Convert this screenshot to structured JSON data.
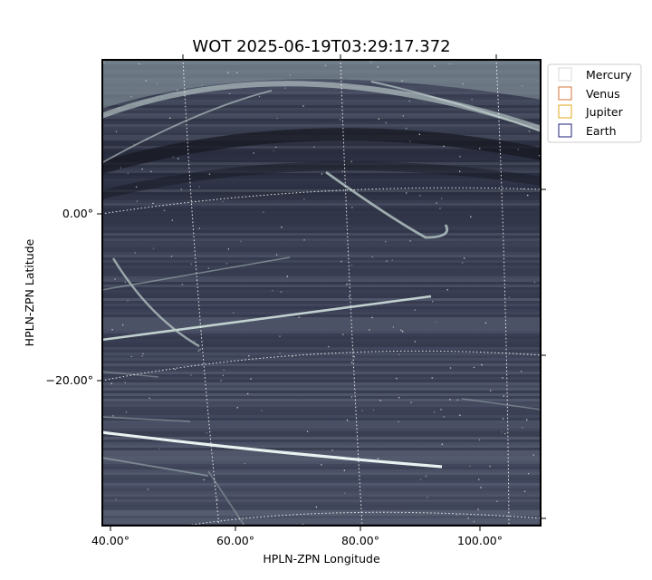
{
  "figure": {
    "title": "WOT 2025-06-19T03:29:17.372",
    "xlabel": "HPLN-ZPN Longitude",
    "ylabel": "HPLN-ZPN Latitude",
    "x_ticks": [
      "40.00°",
      "60.00°",
      "80.00°",
      "100.00°"
    ],
    "y_ticks": [
      "0.00°",
      "−20.00°"
    ],
    "legend": [
      {
        "name": "Mercury",
        "color": "#d9d9d9"
      },
      {
        "name": "Venus",
        "color": "#d4733a"
      },
      {
        "name": "Jupiter",
        "color": "#e0aa1a"
      },
      {
        "name": "Earth",
        "color": "#1f1f7a"
      }
    ],
    "image_colors": {
      "background": "#3a3f55",
      "streak": "#c9dbd8",
      "dark_band": "#1b1d28"
    }
  }
}
